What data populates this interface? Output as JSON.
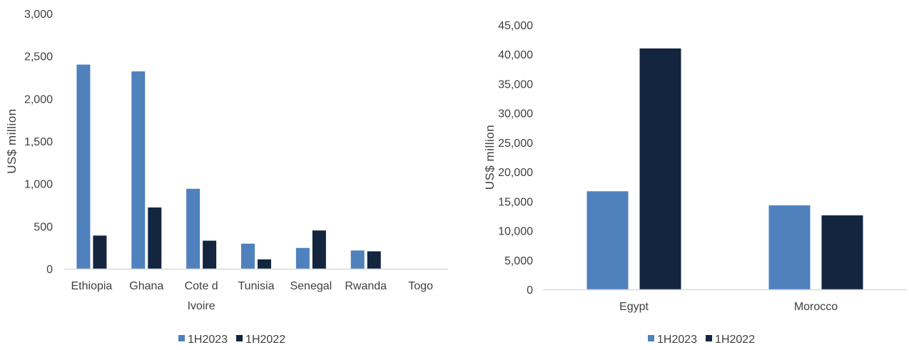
{
  "colors": {
    "series_1": "#4f81bd",
    "series_2": "#13253f",
    "axis_line": "#d9d9d9",
    "text": "#404040"
  },
  "chart_data": [
    {
      "type": "bar",
      "title": "",
      "xlabel": "",
      "ylabel": "US$ million",
      "categories": [
        "Ethiopia",
        "Ghana",
        "Cote d Ivoire",
        "Tunisia",
        "Senegal",
        "Rwanda",
        "Togo"
      ],
      "category_lines": [
        [
          "Ethiopia"
        ],
        [
          "Ghana"
        ],
        [
          "Cote d",
          "Ivoire"
        ],
        [
          "Tunisia"
        ],
        [
          "Senegal"
        ],
        [
          "Rwanda"
        ],
        [
          "Togo"
        ]
      ],
      "series": [
        {
          "name": "1H2023",
          "values": [
            2400,
            2320,
            940,
            295,
            245,
            215,
            0
          ]
        },
        {
          "name": "1H2022",
          "values": [
            390,
            720,
            330,
            110,
            450,
            205,
            0
          ]
        }
      ],
      "ylim": [
        0,
        3000
      ],
      "yticks": [
        0,
        500,
        1000,
        1500,
        2000,
        2500,
        3000
      ],
      "ytick_labels": [
        "0",
        "500",
        "1,000",
        "1,500",
        "2,000",
        "2,500",
        "3,000"
      ],
      "grid": false,
      "legend": "bottom-center"
    },
    {
      "type": "bar",
      "title": "",
      "xlabel": "",
      "ylabel": "US$ million",
      "categories": [
        "Egypt",
        "Morocco"
      ],
      "category_lines": [
        [
          "Egypt"
        ],
        [
          "Morocco"
        ]
      ],
      "series": [
        {
          "name": "1H2023",
          "values": [
            16700,
            14300
          ]
        },
        {
          "name": "1H2022",
          "values": [
            41000,
            12600
          ]
        }
      ],
      "ylim": [
        0,
        45000
      ],
      "yticks": [
        0,
        5000,
        10000,
        15000,
        20000,
        25000,
        30000,
        35000,
        40000,
        45000
      ],
      "ytick_labels": [
        "0",
        "5,000",
        "10,000",
        "15,000",
        "20,000",
        "25,000",
        "30,000",
        "35,000",
        "40,000",
        "45,000"
      ],
      "grid": false,
      "legend": "bottom-center"
    }
  ]
}
